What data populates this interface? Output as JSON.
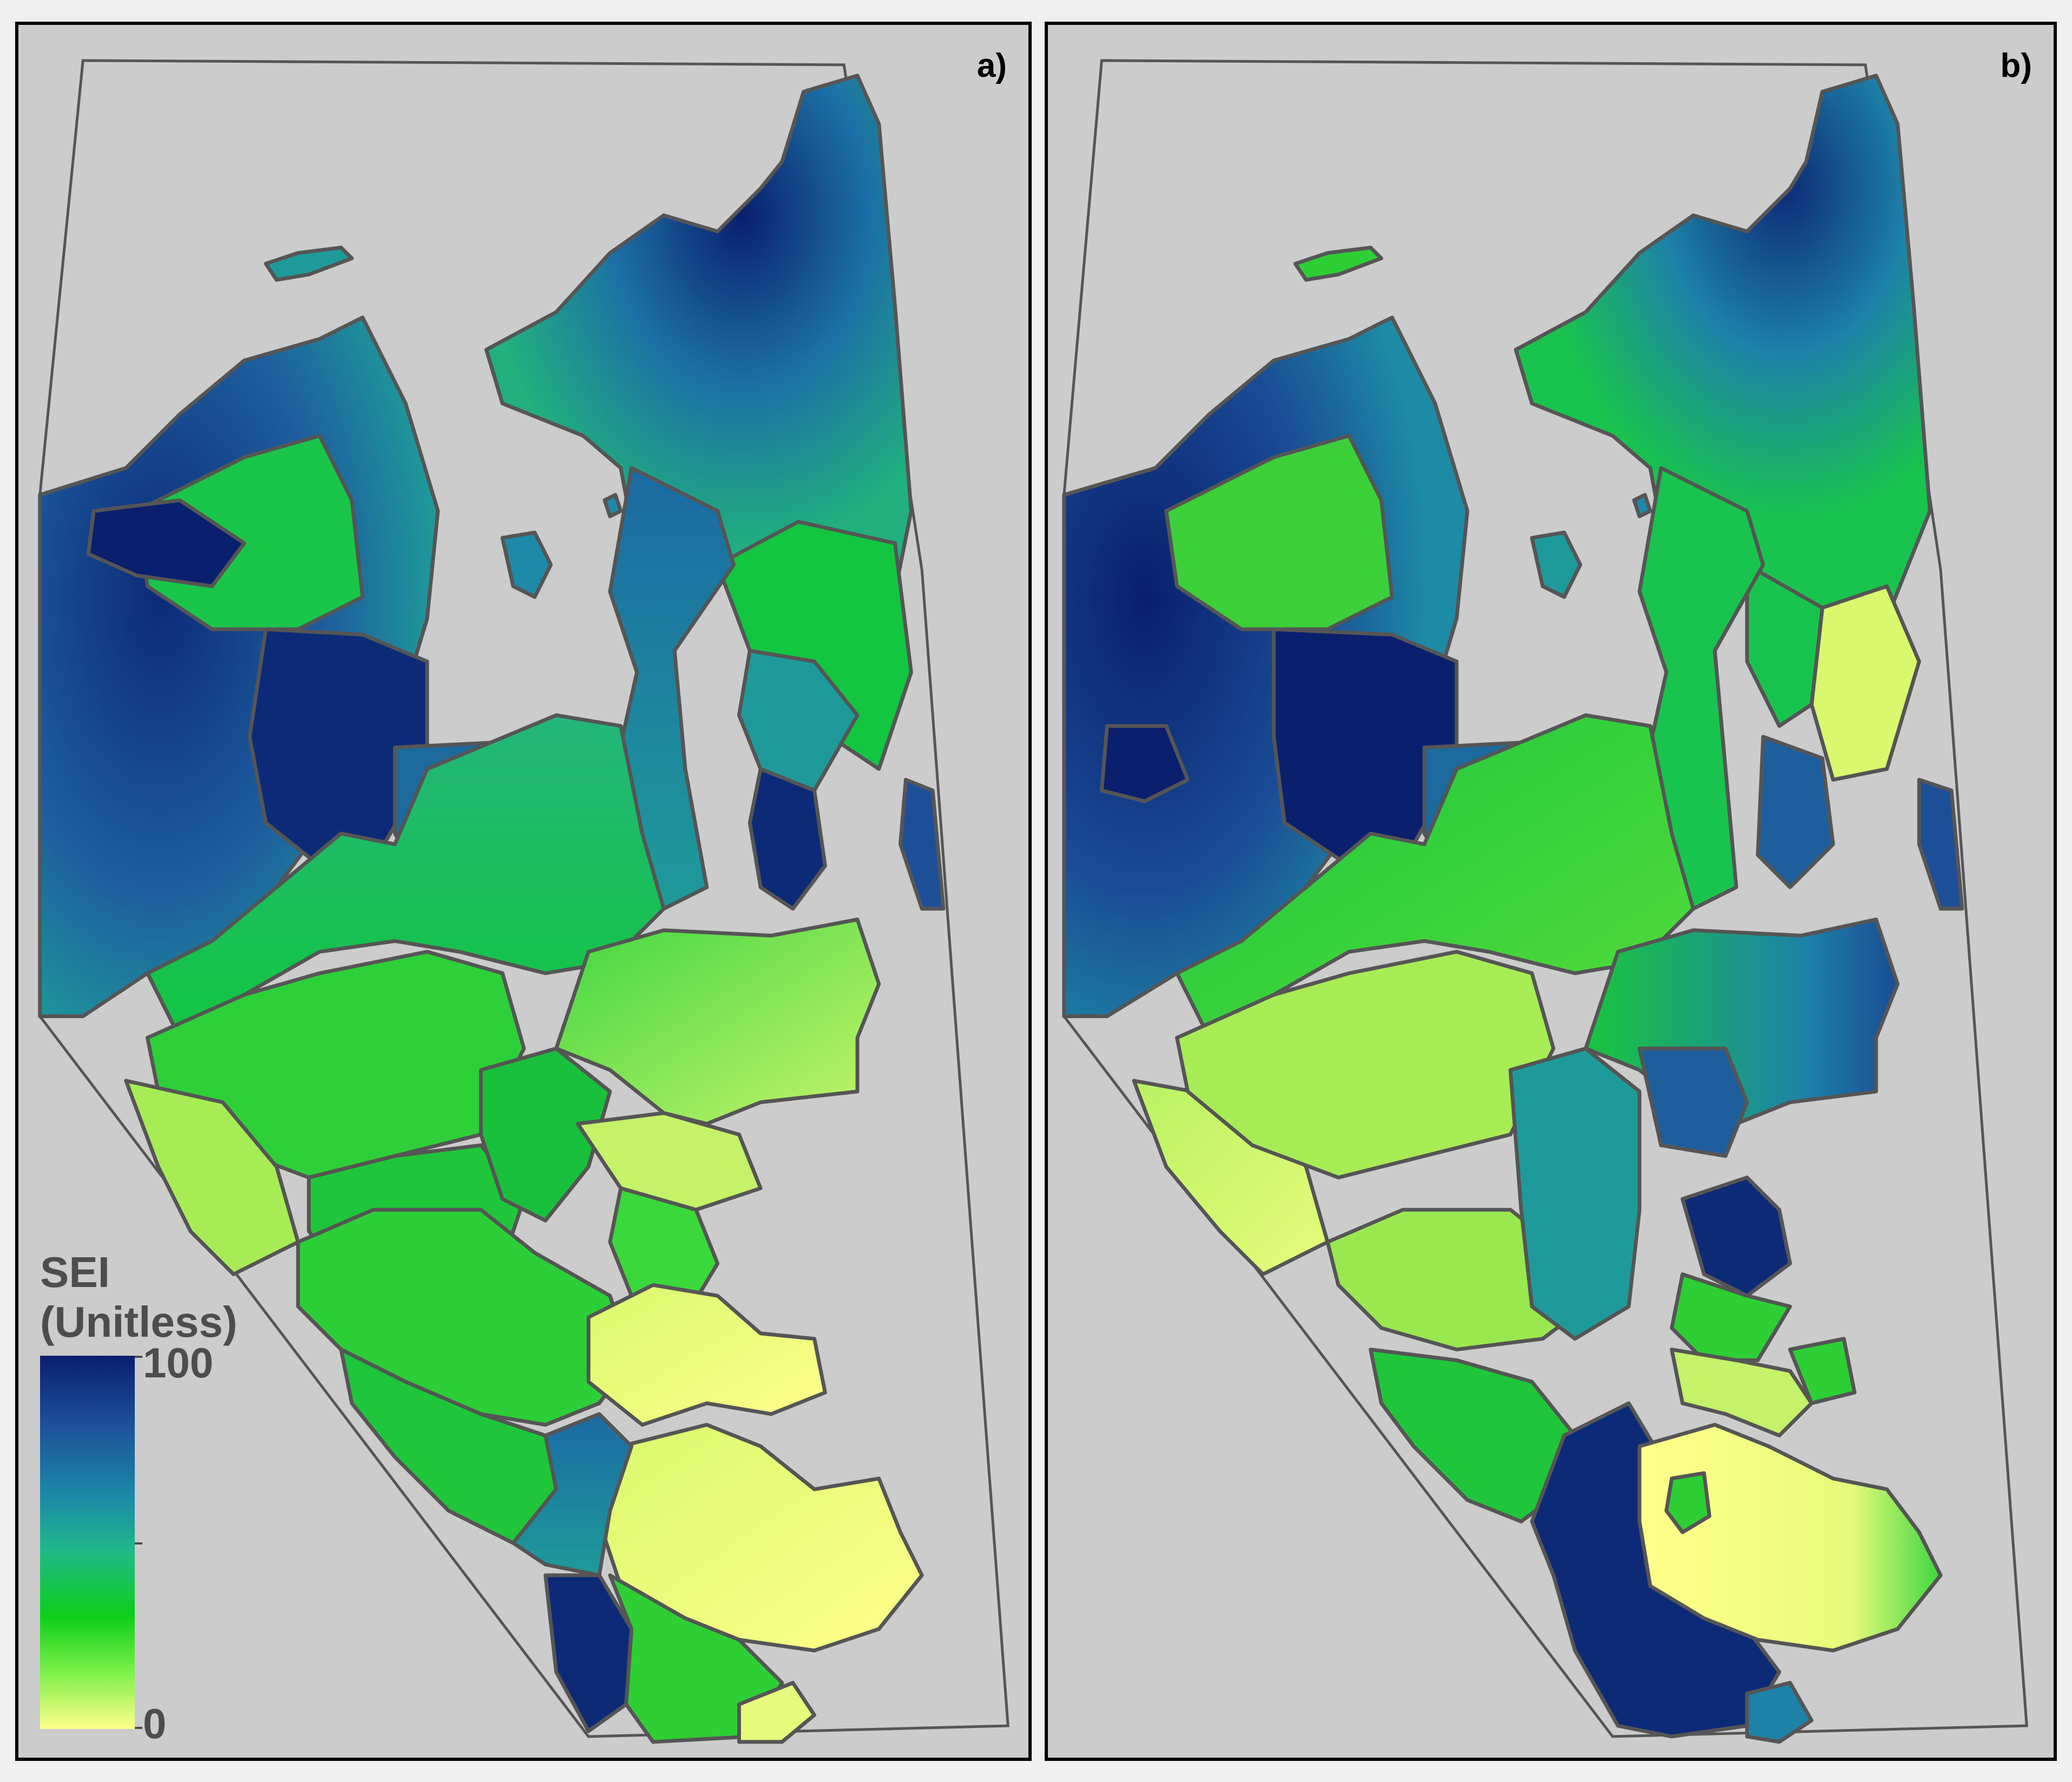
{
  "panels": [
    {
      "label": "a)"
    },
    {
      "label": "b)"
    }
  ],
  "legend": {
    "title_line1": "SEI",
    "title_line2": "(Unitless)",
    "max_label": "100",
    "min_label": "0",
    "range": [
      0,
      100
    ],
    "colors": [
      "#ffff8a",
      "#0ecf1a",
      "#1fb88a",
      "#1c8aa8",
      "#0a1f6e"
    ]
  }
}
